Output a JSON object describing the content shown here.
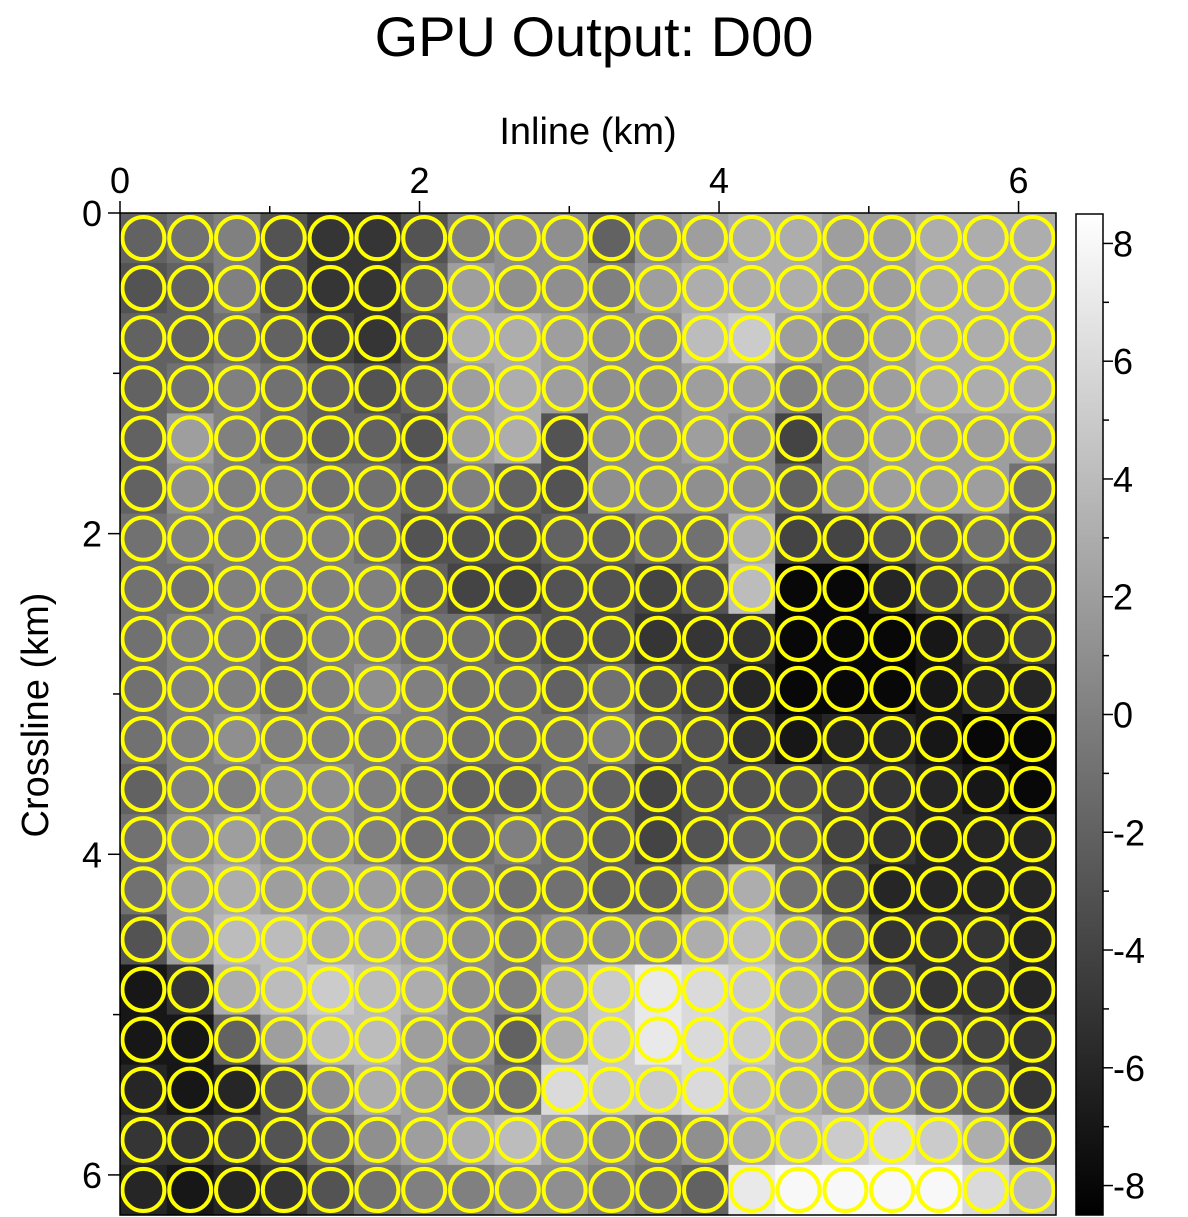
{
  "chart_data": {
    "type": "heatmap",
    "title": "GPU Output: D00",
    "xlabel": "Inline (km)",
    "ylabel": "Crossline (km)",
    "xlim": [
      0,
      6.25
    ],
    "ylim": [
      0,
      6.25
    ],
    "x_axis_position": "top",
    "y_axis_inverted": true,
    "xticks": [
      0,
      2,
      4,
      6
    ],
    "yticks": [
      0,
      2,
      4,
      6
    ],
    "colormap": "gray",
    "colorbar": {
      "range": [
        -8.5,
        8.5
      ],
      "ticks": [
        8,
        6,
        4,
        2,
        0,
        -2,
        -4,
        -6,
        -8
      ],
      "tick_labels": [
        "8",
        "6",
        "4",
        "2",
        "0",
        "-2",
        "-4",
        "-6",
        "-8"
      ],
      "position": "right"
    },
    "overlay": {
      "shape": "circle",
      "color": "#ffff00",
      "rows": 20,
      "cols": 20,
      "diameter_km": 0.28
    },
    "grid_values": [
      [
        -2,
        -1,
        0,
        -3,
        -5,
        -5,
        -3,
        0,
        1,
        1,
        -2,
        1,
        2,
        3,
        3,
        2,
        2,
        3,
        3,
        3
      ],
      [
        -3,
        -2,
        0,
        -3,
        -5,
        -5,
        -2,
        2,
        1,
        1,
        0,
        2,
        3,
        3,
        3,
        2,
        2,
        3,
        3,
        3
      ],
      [
        -2,
        -2,
        -1,
        -2,
        -4,
        -5,
        -3,
        3,
        3,
        2,
        1,
        1,
        4,
        5,
        2,
        1,
        2,
        3,
        3,
        3
      ],
      [
        -2,
        -1,
        0,
        -1,
        -2,
        -3,
        -2,
        2,
        3,
        2,
        1,
        1,
        2,
        2,
        0,
        1,
        2,
        3,
        3,
        3
      ],
      [
        -2,
        2,
        0,
        -1,
        -2,
        -2,
        -3,
        2,
        3,
        -3,
        1,
        1,
        2,
        1,
        -4,
        1,
        2,
        2,
        2,
        2
      ],
      [
        -2,
        1,
        0,
        0,
        -1,
        -1,
        -2,
        0,
        -2,
        -3,
        1,
        1,
        1,
        1,
        -2,
        1,
        2,
        2,
        2,
        -1
      ],
      [
        -1,
        0,
        0,
        0,
        0,
        -1,
        -3,
        -3,
        -3,
        -2,
        -2,
        -1,
        -1,
        3,
        -4,
        -4,
        -3,
        -2,
        -1,
        -2
      ],
      [
        -1,
        -1,
        0,
        0,
        0,
        0,
        -2,
        -4,
        -4,
        -3,
        -3,
        -4,
        -3,
        4,
        -8,
        -8,
        -6,
        -4,
        -3,
        -3
      ],
      [
        -1,
        0,
        0,
        -1,
        0,
        0,
        -1,
        -1,
        -2,
        -3,
        -3,
        -5,
        -5,
        -5,
        -8,
        -8,
        -8,
        -7,
        -5,
        -4
      ],
      [
        -1,
        0,
        0,
        -1,
        0,
        1,
        0,
        -1,
        -1,
        -2,
        -1,
        -3,
        -4,
        -6,
        -8,
        -8,
        -8,
        -7,
        -6,
        -6
      ],
      [
        -1,
        0,
        1,
        0,
        0,
        0,
        0,
        -1,
        -1,
        -1,
        0,
        -2,
        -3,
        -5,
        -7,
        -6,
        -6,
        -7,
        -8,
        -8
      ],
      [
        -2,
        0,
        0,
        1,
        1,
        0,
        -1,
        -2,
        -2,
        -1,
        -2,
        -4,
        -3,
        -3,
        -3,
        -4,
        -5,
        -6,
        -7,
        -8
      ],
      [
        -1,
        1,
        2,
        1,
        1,
        0,
        -1,
        -1,
        0,
        -1,
        -2,
        -4,
        -3,
        -2,
        -2,
        -4,
        -5,
        -6,
        -6,
        -6
      ],
      [
        -1,
        2,
        3,
        2,
        2,
        2,
        1,
        0,
        -1,
        -1,
        -2,
        -2,
        0,
        3,
        -1,
        -3,
        -6,
        -6,
        -6,
        -6
      ],
      [
        -3,
        2,
        4,
        4,
        3,
        3,
        2,
        1,
        0,
        1,
        1,
        1,
        3,
        4,
        2,
        -1,
        -5,
        -5,
        -5,
        -6
      ],
      [
        -7,
        -5,
        3,
        4,
        5,
        4,
        3,
        1,
        0,
        3,
        5,
        7,
        6,
        5,
        3,
        1,
        -3,
        -5,
        -5,
        -6
      ],
      [
        -7,
        -7,
        -2,
        2,
        4,
        4,
        2,
        1,
        -2,
        3,
        5,
        7,
        6,
        5,
        3,
        1,
        -1,
        -3,
        -4,
        -5
      ],
      [
        -6,
        -7,
        -6,
        -3,
        1,
        3,
        2,
        0,
        -1,
        6,
        5,
        5,
        6,
        4,
        3,
        2,
        1,
        -1,
        -2,
        -5
      ],
      [
        -5,
        -5,
        -4,
        -3,
        -1,
        1,
        2,
        3,
        4,
        2,
        1,
        0,
        1,
        3,
        4,
        5,
        6,
        5,
        3,
        -2
      ],
      [
        -6,
        -7,
        -6,
        -5,
        -3,
        -1,
        0,
        0,
        1,
        1,
        0,
        -1,
        -2,
        7,
        8,
        8,
        8,
        8,
        6,
        4
      ]
    ]
  }
}
